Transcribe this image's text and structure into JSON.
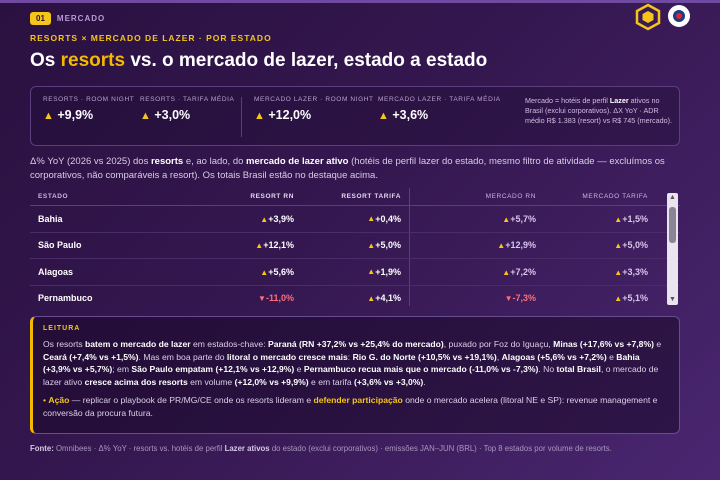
{
  "section": {
    "number": "01",
    "label": "MERCADO"
  },
  "kicker": "RESORTS × MERCADO DE LAZER · POR ESTADO",
  "title": {
    "pre": "Os ",
    "highlight": "resorts",
    "post": " vs. o mercado de lazer, estado a estado"
  },
  "kpis": [
    {
      "label": "RESORTS · ROOM NIGHT",
      "value": "+9,9%"
    },
    {
      "label": "RESORTS · TARIFA MÉDIA",
      "value": "+3,0%"
    },
    {
      "label": "MERCADO LAZER · ROOM NIGHT",
      "value": "+12,0%"
    },
    {
      "label": "MERCADO LAZER · TARIFA MÉDIA",
      "value": "+3,6%"
    }
  ],
  "kpi_note": {
    "p1": "Mercado = hotéis de perfil ",
    "b1": "Lazer",
    "p2": " ativos no Brasil (exclui corporativos). ΔX YoY · ADR médio R$ 1.383 (resort) vs R$ 745 (mercado)."
  },
  "description": {
    "p1": "Δ% YoY (2026 vs 2025) dos ",
    "b1": "resorts",
    "p2": " e, ao lado, do ",
    "b2": "mercado de lazer ativo",
    "p3": " (hotéis de perfil lazer do estado, mesmo filtro de atividade — excluímos os corporativos, não comparáveis a resort). Os totais Brasil estão no destaque acima."
  },
  "table": {
    "headers": [
      "ESTADO",
      "RESORT RN",
      "RESORT TARIFA",
      "MERCADO RN",
      "MERCADO TARIFA"
    ],
    "rows": [
      {
        "state": "Bahia",
        "rrn": "+3,9%",
        "rrn_dir": "up",
        "rt": "+0,4%",
        "rt_dir": "up",
        "mrn": "+5,7%",
        "mrn_dir": "up",
        "mt": "+1,5%",
        "mt_dir": "up"
      },
      {
        "state": "São Paulo",
        "rrn": "+12,1%",
        "rrn_dir": "up",
        "rt": "+5,0%",
        "rt_dir": "up",
        "mrn": "+12,9%",
        "mrn_dir": "up",
        "mt": "+5,0%",
        "mt_dir": "up"
      },
      {
        "state": "Alagoas",
        "rrn": "+5,6%",
        "rrn_dir": "up",
        "rt": "+1,9%",
        "rt_dir": "up",
        "mrn": "+7,2%",
        "mrn_dir": "up",
        "mt": "+3,3%",
        "mt_dir": "up"
      },
      {
        "state": "Pernambuco",
        "rrn": "-11,0%",
        "rrn_dir": "down",
        "rt": "+4,1%",
        "rt_dir": "up",
        "mrn": "-7,3%",
        "mrn_dir": "down",
        "mt": "+5,1%",
        "mt_dir": "up"
      }
    ]
  },
  "leitura": {
    "title": "LEITURA",
    "t1": "Os resorts ",
    "t2": "batem o mercado de lazer",
    "t3": " em estados-chave: ",
    "t4": "Paraná (RN +37,2% vs +25,4% do mercado)",
    "t5": ", puxado por Foz do Iguaçu, ",
    "t6": "Minas (+17,6% vs +7,8%)",
    "t7": " e ",
    "t8": "Ceará (+7,4% vs +1,5%)",
    "t9": ". Mas em boa parte do ",
    "t10": "litoral o mercado cresce mais",
    "t11": ": ",
    "t12": "Rio G. do Norte (+10,5% vs +19,1%)",
    "t13": ", ",
    "t14": "Alagoas (+5,6% vs +7,2%)",
    "t15": " e ",
    "t16": "Bahia (+3,9% vs +5,7%)",
    "t17": "; em ",
    "t18": "São Paulo empatam (+12,1% vs +12,9%)",
    "t19": " e ",
    "t20": "Pernambuco recua mais que o mercado (-11,0% vs -7,3%)",
    "t21": ". No ",
    "t22": "total Brasil",
    "t23": ", o mercado de lazer ativo ",
    "t24": "cresce acima dos resorts",
    "t25": " em volume ",
    "t26": "(+12,0% vs +9,9%)",
    "t27": " e em tarifa ",
    "t28": "(+3,6% vs +3,0%)",
    "t29": "."
  },
  "acao": {
    "bullet": "•",
    "label": "Ação",
    "a1": " — replicar o playbook de PR/MG/CE onde os resorts lideram e ",
    "a2": "defender participação",
    "a3": " onde o mercado acelera (litoral NE e SP): revenue management e conversão da procura futura."
  },
  "footer": {
    "f1": "Fonte:",
    "f2": " Omnibees · Δ% YoY · resorts vs. hotéis de perfil ",
    "f3": "Lazer ativos",
    "f4": " do estado (exclui corporativos) · emissões JAN–JUN (BRL) · Top 8 estados por volume de resorts."
  },
  "colors": {
    "accent": "#f5c518",
    "negative": "#ff6f7a",
    "background": "#34174f"
  }
}
